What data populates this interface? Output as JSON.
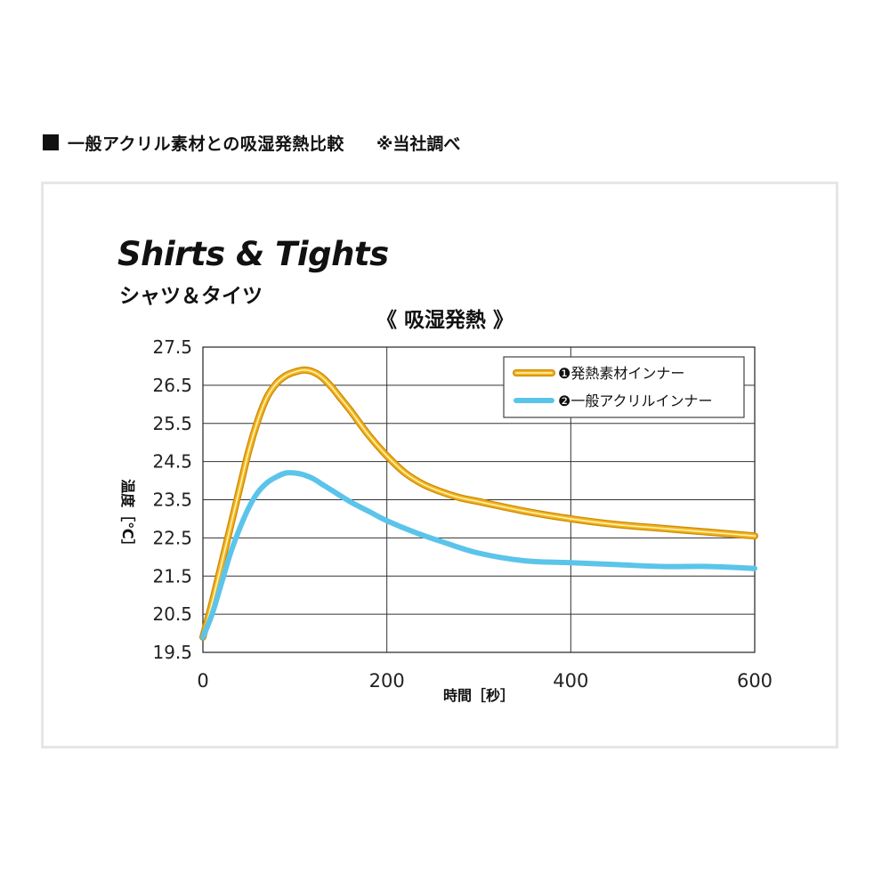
{
  "header": {
    "title": "一般アクリル素材との吸湿発熱比較",
    "note": "※当社調べ"
  },
  "chart_data": {
    "type": "line",
    "title": "Shirts & Tights",
    "subtitle": "シャツ＆タイツ",
    "heading": "《 吸湿発熱 》",
    "xlabel": "時間［秒］",
    "ylabel": "温度［℃］",
    "xlim": [
      0,
      600
    ],
    "ylim": [
      19.5,
      27.5
    ],
    "x_ticks": [
      "0",
      "200",
      "400",
      "600"
    ],
    "y_ticks": [
      "27.5",
      "26.5",
      "25.5",
      "24.5",
      "23.5",
      "22.5",
      "21.5",
      "20.5",
      "19.5"
    ],
    "grid": true,
    "legend_position": "top-right",
    "series": [
      {
        "name": "❶発熱素材インナー",
        "color": "#f2b21e",
        "x": [
          0,
          10,
          20,
          30,
          40,
          50,
          60,
          70,
          80,
          90,
          100,
          110,
          120,
          130,
          140,
          150,
          160,
          180,
          200,
          220,
          240,
          260,
          280,
          300,
          350,
          400,
          450,
          500,
          550,
          600
        ],
        "y": [
          19.9,
          20.8,
          21.8,
          22.8,
          23.8,
          24.8,
          25.6,
          26.2,
          26.55,
          26.75,
          26.85,
          26.9,
          26.85,
          26.7,
          26.45,
          26.15,
          25.85,
          25.2,
          24.65,
          24.2,
          23.9,
          23.7,
          23.55,
          23.45,
          23.2,
          23.0,
          22.85,
          22.75,
          22.65,
          22.55
        ]
      },
      {
        "name": "❷一般アクリルインナー",
        "color": "#5bc4ea",
        "x": [
          0,
          10,
          20,
          30,
          40,
          50,
          60,
          70,
          80,
          90,
          100,
          110,
          120,
          130,
          140,
          160,
          180,
          200,
          230,
          260,
          300,
          350,
          400,
          450,
          500,
          550,
          600
        ],
        "y": [
          19.9,
          20.5,
          21.3,
          22.1,
          22.75,
          23.3,
          23.7,
          23.95,
          24.1,
          24.2,
          24.2,
          24.15,
          24.05,
          23.9,
          23.75,
          23.45,
          23.2,
          22.95,
          22.65,
          22.4,
          22.1,
          21.9,
          21.85,
          21.8,
          21.75,
          21.75,
          21.7
        ]
      }
    ]
  }
}
